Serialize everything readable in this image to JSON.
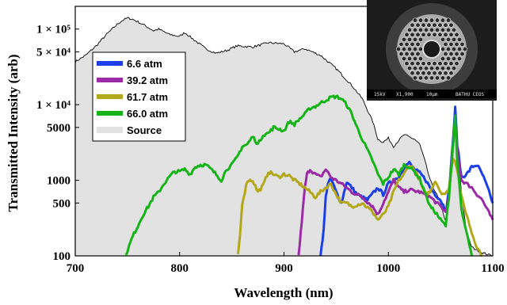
{
  "chart_data": {
    "type": "line",
    "title": "",
    "xlabel": "Wavelength (nm)",
    "ylabel": "Transmitted Intensity (arb)",
    "xlim": [
      700,
      1100
    ],
    "ylim": [
      100,
      200000
    ],
    "yscale": "log",
    "grid": false,
    "legend_position": "upper-left",
    "x_ticks": [
      {
        "value": 700,
        "label": "700"
      },
      {
        "value": 800,
        "label": "800"
      },
      {
        "value": 900,
        "label": "900"
      },
      {
        "value": 1000,
        "label": "1000"
      },
      {
        "value": 1100,
        "label": "1100"
      }
    ],
    "y_ticks": [
      {
        "value": 100000,
        "label": "1 × 10⁵"
      },
      {
        "value": 50000,
        "label": "5 × 10⁴"
      },
      {
        "value": 10000,
        "label": "1 × 10⁴"
      },
      {
        "value": 5000,
        "label": "5000"
      },
      {
        "value": 1000,
        "label": "1000"
      },
      {
        "value": 500,
        "label": "500"
      },
      {
        "value": 100,
        "label": "100"
      }
    ],
    "inset_text": [
      "15kV",
      "X1,900",
      "10μm",
      "BATHU CEOS"
    ],
    "series": [
      {
        "name": "Source",
        "color": "#e2e2e2",
        "edge_color": "#000000",
        "kind": "area",
        "points": [
          [
            700,
            37000
          ],
          [
            710,
            45000
          ],
          [
            720,
            60000
          ],
          [
            730,
            85000
          ],
          [
            740,
            115000
          ],
          [
            745,
            130000
          ],
          [
            750,
            140000
          ],
          [
            755,
            135000
          ],
          [
            760,
            125000
          ],
          [
            770,
            105000
          ],
          [
            775,
            95000
          ],
          [
            780,
            100000
          ],
          [
            790,
            85000
          ],
          [
            800,
            80000
          ],
          [
            805,
            90000
          ],
          [
            815,
            70000
          ],
          [
            825,
            55000
          ],
          [
            835,
            48000
          ],
          [
            845,
            52000
          ],
          [
            855,
            60000
          ],
          [
            870,
            58000
          ],
          [
            885,
            66000
          ],
          [
            900,
            64000
          ],
          [
            910,
            50000
          ],
          [
            920,
            55000
          ],
          [
            935,
            45000
          ],
          [
            950,
            30000
          ],
          [
            965,
            18000
          ],
          [
            975,
            12000
          ],
          [
            985,
            6000
          ],
          [
            990,
            3500
          ],
          [
            995,
            3200
          ],
          [
            1000,
            3600
          ],
          [
            1005,
            2800
          ],
          [
            1010,
            3400
          ],
          [
            1015,
            4000
          ],
          [
            1025,
            3500
          ],
          [
            1030,
            3000
          ],
          [
            1035,
            1800
          ],
          [
            1040,
            1000
          ],
          [
            1050,
            500
          ],
          [
            1055,
            280
          ],
          [
            1058,
            600
          ],
          [
            1062,
            4000
          ],
          [
            1064,
            6500
          ],
          [
            1066,
            3000
          ],
          [
            1070,
            700
          ],
          [
            1075,
            200
          ],
          [
            1080,
            130
          ],
          [
            1090,
            110
          ],
          [
            1100,
            100
          ]
        ]
      },
      {
        "name": "6.6 atm",
        "color": "#1a3fe8",
        "kind": "line",
        "points": [
          [
            935,
            100
          ],
          [
            938,
            220
          ],
          [
            940,
            600
          ],
          [
            942,
            900
          ],
          [
            945,
            1050
          ],
          [
            950,
            700
          ],
          [
            955,
            500
          ],
          [
            960,
            950
          ],
          [
            965,
            800
          ],
          [
            970,
            650
          ],
          [
            980,
            550
          ],
          [
            990,
            800
          ],
          [
            995,
            650
          ],
          [
            1000,
            900
          ],
          [
            1005,
            1000
          ],
          [
            1010,
            1100
          ],
          [
            1015,
            1500
          ],
          [
            1020,
            1700
          ],
          [
            1025,
            1400
          ],
          [
            1030,
            1250
          ],
          [
            1035,
            1050
          ],
          [
            1040,
            800
          ],
          [
            1045,
            650
          ],
          [
            1050,
            550
          ],
          [
            1055,
            400
          ],
          [
            1058,
            700
          ],
          [
            1062,
            3500
          ],
          [
            1064,
            9000
          ],
          [
            1066,
            3000
          ],
          [
            1070,
            1100
          ],
          [
            1075,
            1200
          ],
          [
            1080,
            1500
          ],
          [
            1085,
            1600
          ],
          [
            1090,
            1200
          ],
          [
            1095,
            800
          ],
          [
            1100,
            500
          ]
        ]
      },
      {
        "name": "39.2 atm",
        "color": "#9a2aa6",
        "kind": "line",
        "points": [
          [
            914,
            100
          ],
          [
            916,
            200
          ],
          [
            918,
            400
          ],
          [
            920,
            800
          ],
          [
            922,
            1200
          ],
          [
            925,
            1400
          ],
          [
            930,
            1200
          ],
          [
            935,
            1100
          ],
          [
            940,
            1400
          ],
          [
            945,
            1100
          ],
          [
            955,
            900
          ],
          [
            965,
            700
          ],
          [
            975,
            600
          ],
          [
            985,
            450
          ],
          [
            990,
            350
          ],
          [
            995,
            500
          ],
          [
            1000,
            700
          ],
          [
            1005,
            1000
          ],
          [
            1010,
            800
          ],
          [
            1015,
            700
          ],
          [
            1020,
            750
          ],
          [
            1030,
            700
          ],
          [
            1040,
            600
          ],
          [
            1050,
            450
          ],
          [
            1055,
            380
          ],
          [
            1058,
            600
          ],
          [
            1062,
            3000
          ],
          [
            1064,
            6000
          ],
          [
            1066,
            2500
          ],
          [
            1070,
            1000
          ],
          [
            1075,
            900
          ],
          [
            1080,
            800
          ],
          [
            1085,
            650
          ],
          [
            1090,
            550
          ],
          [
            1095,
            400
          ],
          [
            1100,
            300
          ]
        ]
      },
      {
        "name": "61.7 atm",
        "color": "#b3a81a",
        "kind": "line",
        "points": [
          [
            856,
            100
          ],
          [
            858,
            200
          ],
          [
            860,
            500
          ],
          [
            865,
            1000
          ],
          [
            870,
            1000
          ],
          [
            875,
            700
          ],
          [
            880,
            850
          ],
          [
            885,
            1300
          ],
          [
            890,
            1200
          ],
          [
            895,
            1100
          ],
          [
            900,
            1200
          ],
          [
            905,
            1150
          ],
          [
            910,
            1000
          ],
          [
            915,
            900
          ],
          [
            920,
            800
          ],
          [
            925,
            700
          ],
          [
            930,
            600
          ],
          [
            935,
            700
          ],
          [
            940,
            800
          ],
          [
            945,
            900
          ],
          [
            950,
            650
          ],
          [
            955,
            500
          ],
          [
            960,
            500
          ],
          [
            965,
            450
          ],
          [
            975,
            500
          ],
          [
            985,
            380
          ],
          [
            990,
            300
          ],
          [
            995,
            350
          ],
          [
            1000,
            450
          ],
          [
            1005,
            700
          ],
          [
            1010,
            1000
          ],
          [
            1015,
            1200
          ],
          [
            1020,
            1600
          ],
          [
            1025,
            1400
          ],
          [
            1030,
            1000
          ],
          [
            1035,
            650
          ],
          [
            1040,
            700
          ],
          [
            1045,
            1000
          ],
          [
            1050,
            700
          ],
          [
            1055,
            650
          ],
          [
            1058,
            800
          ],
          [
            1062,
            2000
          ],
          [
            1064,
            1800
          ],
          [
            1066,
            1400
          ],
          [
            1070,
            600
          ],
          [
            1075,
            350
          ],
          [
            1080,
            200
          ],
          [
            1085,
            130
          ],
          [
            1090,
            100
          ]
        ]
      },
      {
        "name": "66.0 atm",
        "color": "#16b418",
        "kind": "line",
        "points": [
          [
            748,
            100
          ],
          [
            755,
            180
          ],
          [
            760,
            250
          ],
          [
            765,
            350
          ],
          [
            770,
            450
          ],
          [
            775,
            600
          ],
          [
            780,
            700
          ],
          [
            785,
            900
          ],
          [
            790,
            1100
          ],
          [
            795,
            1300
          ],
          [
            800,
            1300
          ],
          [
            805,
            1400
          ],
          [
            810,
            1200
          ],
          [
            815,
            1500
          ],
          [
            820,
            1600
          ],
          [
            825,
            1600
          ],
          [
            830,
            1400
          ],
          [
            835,
            1200
          ],
          [
            840,
            1000
          ],
          [
            845,
            1400
          ],
          [
            850,
            1600
          ],
          [
            855,
            2000
          ],
          [
            860,
            2800
          ],
          [
            865,
            3000
          ],
          [
            870,
            3800
          ],
          [
            875,
            3000
          ],
          [
            880,
            4000
          ],
          [
            885,
            4200
          ],
          [
            890,
            5000
          ],
          [
            895,
            4800
          ],
          [
            900,
            4500
          ],
          [
            905,
            6000
          ],
          [
            910,
            5500
          ],
          [
            915,
            6500
          ],
          [
            920,
            7500
          ],
          [
            925,
            9000
          ],
          [
            930,
            9500
          ],
          [
            935,
            10500
          ],
          [
            940,
            11500
          ],
          [
            945,
            12500
          ],
          [
            950,
            12800
          ],
          [
            955,
            12000
          ],
          [
            960,
            10000
          ],
          [
            965,
            7500
          ],
          [
            970,
            5000
          ],
          [
            975,
            3500
          ],
          [
            980,
            2500
          ],
          [
            985,
            1800
          ],
          [
            990,
            1200
          ],
          [
            995,
            900
          ],
          [
            1000,
            1100
          ],
          [
            1005,
            1400
          ],
          [
            1010,
            1200
          ],
          [
            1015,
            1600
          ],
          [
            1020,
            1500
          ],
          [
            1025,
            1300
          ],
          [
            1030,
            1050
          ],
          [
            1035,
            700
          ],
          [
            1040,
            450
          ],
          [
            1045,
            380
          ],
          [
            1050,
            300
          ],
          [
            1055,
            250
          ],
          [
            1058,
            600
          ],
          [
            1062,
            3000
          ],
          [
            1064,
            7000
          ],
          [
            1066,
            1800
          ],
          [
            1070,
            400
          ],
          [
            1075,
            200
          ],
          [
            1080,
            100
          ]
        ]
      }
    ]
  }
}
